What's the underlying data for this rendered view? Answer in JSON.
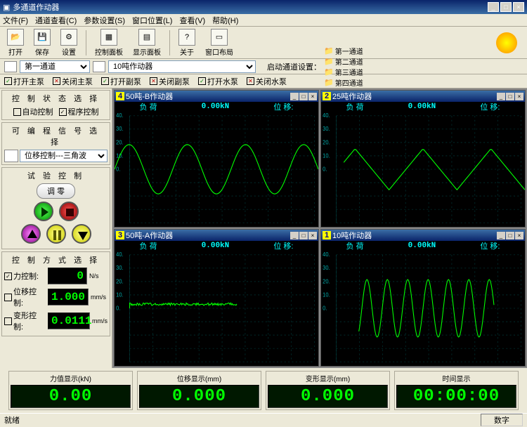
{
  "window": {
    "title": "多通道作动器",
    "min": "_",
    "max": "□",
    "close": "×"
  },
  "menu": [
    "文件(F)",
    "通道查看(C)",
    "参数设置(S)",
    "窗口位置(L)",
    "查看(V)",
    "帮助(H)"
  ],
  "toolbar": [
    {
      "label": "打开",
      "icon": "folder"
    },
    {
      "label": "保存",
      "icon": "disk"
    },
    {
      "label": "设置",
      "icon": "gear"
    },
    {
      "label": "控制面板",
      "icon": "panel"
    },
    {
      "label": "显示面板",
      "icon": "panel2"
    },
    {
      "label": "关于",
      "icon": "help"
    },
    {
      "label": "窗口布局",
      "icon": "layout"
    }
  ],
  "row2": {
    "sel1": "第一通道",
    "sel2": "10吨作动器",
    "launch": "启动通道设置：",
    "chans": [
      "第一通道",
      "第二通道",
      "第三通道",
      "第四通道"
    ]
  },
  "pumps": [
    {
      "t": "打开主泵",
      "on": true
    },
    {
      "t": "关闭主泵",
      "on": false
    },
    {
      "t": "打开副泵",
      "on": true
    },
    {
      "t": "关闭副泵",
      "on": false
    },
    {
      "t": "打开水泵",
      "on": true
    },
    {
      "t": "关闭水泵",
      "on": false
    }
  ],
  "side": {
    "p1": {
      "hdr": "控 制 状 态 选 择",
      "opts": [
        "自动控制",
        "程序控制"
      ]
    },
    "p2": {
      "hdr": "可 编 程 信 号 选 择",
      "sel": "位移控制---三角波"
    },
    "p3": {
      "hdr": "试 验 控 制",
      "btn": "调    零"
    },
    "p4": {
      "hdr": "控 制 方 式 选 择",
      "rows": [
        {
          "lbl": "力控制:",
          "val": "0",
          "unit": "N/s"
        },
        {
          "lbl": "位移控制:",
          "val": "1.000",
          "unit": "mm/s"
        },
        {
          "lbl": "变形控制:",
          "val": "0.0111",
          "unit": "mm/s"
        }
      ]
    }
  },
  "charts": [
    {
      "num": "4",
      "title": "50吨-B作动器",
      "info": {
        "a": "负 荷",
        "v": "0.00kN",
        "b": "位 移:"
      },
      "type": "sine",
      "amp": 30,
      "cycles": 3.5,
      "ylim": 70,
      "color": "#00ff00"
    },
    {
      "num": "2",
      "title": "25吨作动器",
      "info": {
        "a": "负 荷",
        "v": "0.00kN",
        "b": "位 移:"
      },
      "type": "triangle",
      "amp": 25,
      "cycles": 3,
      "ylim": 70,
      "color": "#00ff00"
    },
    {
      "num": "3",
      "title": "50吨-A作动器",
      "info": {
        "a": "负 荷",
        "v": "0.00kN",
        "b": "位 移:"
      },
      "type": "step",
      "amp": 5,
      "cycles": 1,
      "ylim": 70,
      "color": "#00ff00"
    },
    {
      "num": "1",
      "title": "10吨作动器",
      "info": {
        "a": "负 荷",
        "v": "0.00kN",
        "b": "位 移:"
      },
      "type": "dense",
      "amp": 35,
      "cycles": 10,
      "ylim": 70,
      "color": "#00ff00"
    }
  ],
  "bottom": [
    {
      "lbl": "力值显示(kN)",
      "val": "0.00"
    },
    {
      "lbl": "位移显示(mm)",
      "val": "0.000"
    },
    {
      "lbl": "变形显示(mm)",
      "val": "0.000"
    },
    {
      "lbl": "时间显示",
      "val": "00:00:00"
    }
  ],
  "status": {
    "left": "就绪",
    "right": "数字"
  },
  "colors": {
    "bg": "#000",
    "grid": "#044",
    "wave": "#0f0",
    "text": "#0aa"
  }
}
